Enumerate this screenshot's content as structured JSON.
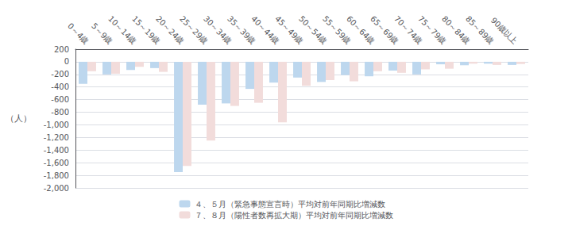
{
  "chart_data": {
    "type": "bar",
    "ylabel": "（人）",
    "categories": [
      "0～4歳",
      "5～9歳",
      "10～14歳",
      "15～19歳",
      "20～24歳",
      "25～29歳",
      "30～34歳",
      "35～39歳",
      "40～44歳",
      "45～49歳",
      "50～54歳",
      "55～59歳",
      "60～64歳",
      "65～69歳",
      "70～74歳",
      "75～79歳",
      "80～84歳",
      "85～89歳",
      "90歳以上"
    ],
    "series": [
      {
        "name": "４、５月（緊急事態宣言時）平均対前年同期比増減数",
        "color": "#BDD7EE",
        "values": [
          -350,
          -200,
          -130,
          -100,
          -1750,
          -680,
          -660,
          -430,
          -330,
          -250,
          -320,
          -210,
          -230,
          -140,
          -200,
          -40,
          -55,
          -30,
          -50
        ]
      },
      {
        "name": "７、８月（陽性者数再拡大期）平均対前年同期比増減数",
        "color": "#F2DCDB",
        "values": [
          -150,
          -190,
          -80,
          -160,
          -1650,
          -1250,
          -700,
          -650,
          -960,
          -380,
          -290,
          -310,
          -150,
          -175,
          -120,
          -110,
          -30,
          -50,
          -35
        ]
      }
    ],
    "ylim": [
      -2000,
      200
    ],
    "yticks": [
      200,
      0,
      -200,
      -400,
      -600,
      -800,
      {
        "value": -1000,
        "label": "-1,000"
      },
      {
        "value": -1200,
        "label": "-1,200"
      },
      {
        "value": -1400,
        "label": "-1,400"
      },
      {
        "value": -1600,
        "label": "-1,600"
      },
      {
        "value": -1800,
        "label": "-1,800"
      },
      {
        "value": -2000,
        "label": "-2,000"
      }
    ],
    "grid": true,
    "legend": "bottom"
  }
}
